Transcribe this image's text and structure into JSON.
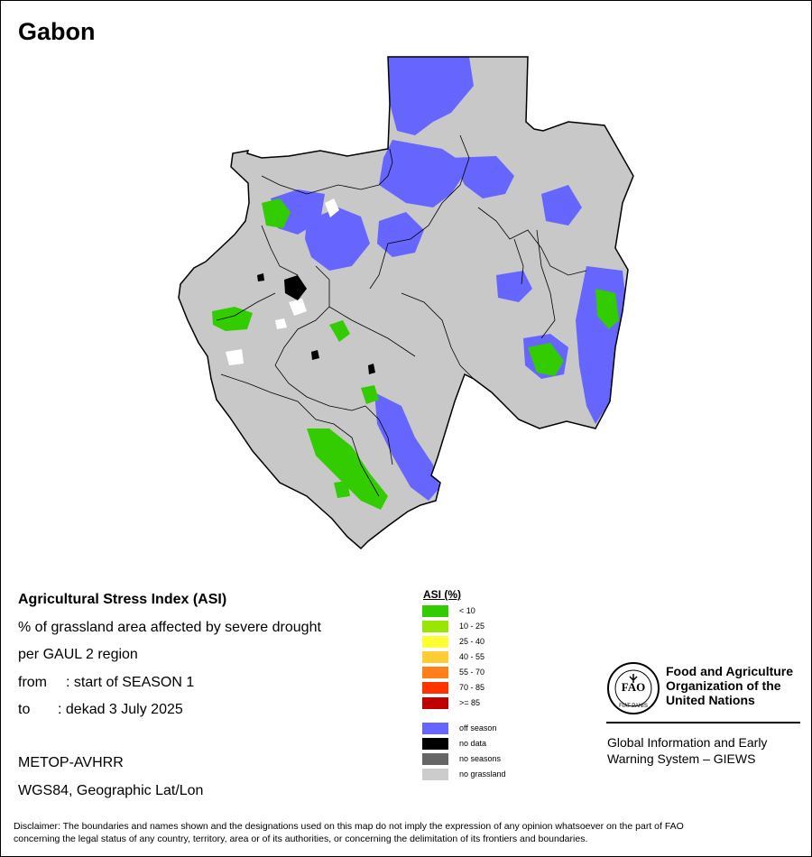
{
  "map": {
    "title": "Gabon"
  },
  "info": {
    "line1": "Agricultural Stress Index (ASI)",
    "line2": "% of grassland area affected by severe drought",
    "line3": "per GAUL 2 region",
    "from_label": "from",
    "from_value": ": start of SEASON 1",
    "to_label": "to",
    "to_value": ": dekad 3 July 2025",
    "sensor": "METOP-AVHRR",
    "projection": "WGS84, Geographic Lat/Lon"
  },
  "legend": {
    "title": "ASI (%)",
    "items": [
      {
        "label": "< 10",
        "color": "#33cc00"
      },
      {
        "label": "10 - 25",
        "color": "#99e600"
      },
      {
        "label": "25 - 40",
        "color": "#ffff33"
      },
      {
        "label": "40 - 55",
        "color": "#ffcc33"
      },
      {
        "label": "55 - 70",
        "color": "#ff8019"
      },
      {
        "label": "70 - 85",
        "color": "#ff3300"
      },
      {
        "label": ">= 85",
        "color": "#c00000"
      }
    ],
    "other": [
      {
        "label": "off season",
        "color": "#6666ff"
      },
      {
        "label": "no data",
        "color": "#000000"
      },
      {
        "label": "no seasons",
        "color": "#666666"
      },
      {
        "label": "no grassland",
        "color": "#cccccc"
      }
    ]
  },
  "org": {
    "line1": "Food and Agriculture",
    "line2": "Organization of the",
    "line3": "United Nations",
    "logo_letters": "FAO",
    "logo_motto": "FIAT PANIS",
    "giews1": "Global Information and Early",
    "giews2": "Warning System – GIEWS"
  },
  "disclaimer": {
    "line1": "Disclaimer: The boundaries and names shown and the designations used on this map do not imply the expression of any opinion whatsoever on the part of FAO",
    "line2": "concerning the legal status of any country, territory, area or of its authorities, or concerning the delimitation of its frontiers and boundaries."
  },
  "colors": {
    "country_fill": "#c8c8c8",
    "off_season": "#6666ff",
    "asi_low": "#33cc00"
  }
}
